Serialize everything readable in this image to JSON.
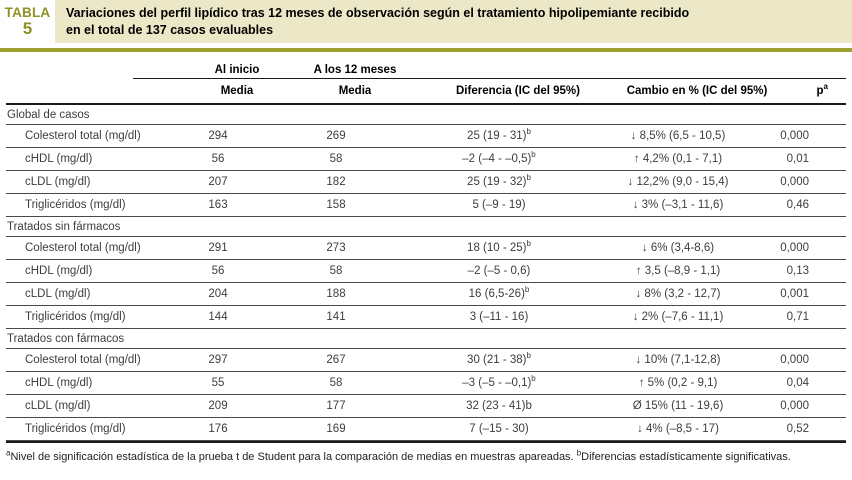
{
  "table_label": {
    "word": "TABLA",
    "number": "5"
  },
  "title": {
    "line1": "Variaciones del perfil lipídico tras 12 meses de observación según el tratamiento hipolipemiante recibido",
    "line2": "en el total de 137 casos evaluables"
  },
  "header": {
    "group_col1": "Al inicio",
    "group_col2": "A los 12 meses",
    "media1": "Media",
    "media2": "Media",
    "diferencia": "Diferencia (IC del 95%)",
    "cambio": "Cambio en % (IC del 95%)",
    "p_base": "p",
    "p_sup": "a"
  },
  "sections": [
    {
      "name": "Global de casos",
      "rows": [
        {
          "label": "Colesterol total (mg/dl)",
          "inicio": "294",
          "meses12": "269",
          "dif": "25 (19 - 31)",
          "dif_sup": "b",
          "cambio": "↓ 8,5% (6,5 - 10,5)",
          "p": "0,000"
        },
        {
          "label": "cHDL (mg/dl)",
          "inicio": "56",
          "meses12": "58",
          "dif": "–2 (–4 - –0,5)",
          "dif_sup": "b",
          "cambio": "↑ 4,2% (0,1 - 7,1)",
          "p": "0,01"
        },
        {
          "label": "cLDL (mg/dl)",
          "inicio": "207",
          "meses12": "182",
          "dif": "25 (19 - 32)",
          "dif_sup": "b",
          "cambio": "↓ 12,2% (9,0 - 15,4)",
          "p": "0,000"
        },
        {
          "label": "Triglicéridos (mg/dl)",
          "inicio": "163",
          "meses12": "158",
          "dif": "5 (–9 - 19)",
          "dif_sup": "",
          "cambio": "↓ 3% (–3,1 - 11,6)",
          "p": "0,46"
        }
      ]
    },
    {
      "name": "Tratados sin fármacos",
      "rows": [
        {
          "label": "Colesterol total (mg/dl)",
          "inicio": "291",
          "meses12": "273",
          "dif": "18 (10 - 25)",
          "dif_sup": "b",
          "cambio": "↓ 6% (3,4-8,6)",
          "p": "0,000"
        },
        {
          "label": "cHDL (mg/dl)",
          "inicio": "56",
          "meses12": "58",
          "dif": "–2 (–5 - 0,6)",
          "dif_sup": "",
          "cambio": "↑ 3,5 (–8,9 - 1,1)",
          "p": "0,13"
        },
        {
          "label": "cLDL (mg/dl)",
          "inicio": "204",
          "meses12": "188",
          "dif": "16 (6,5-26)",
          "dif_sup": "b",
          "cambio": "↓ 8% (3,2 - 12,7)",
          "p": "0,001"
        },
        {
          "label": "Triglicéridos (mg/dl)",
          "inicio": "144",
          "meses12": "141",
          "dif": "3 (–11 - 16)",
          "dif_sup": "",
          "cambio": "↓ 2% (–7,6 - 11,1)",
          "p": "0,71"
        }
      ]
    },
    {
      "name": "Tratados con fármacos",
      "rows": [
        {
          "label": "Colesterol total (mg/dl)",
          "inicio": "297",
          "meses12": "267",
          "dif": "30 (21 - 38)",
          "dif_sup": "b",
          "cambio": "↓ 10% (7,1-12,8)",
          "p": "0,000"
        },
        {
          "label": "cHDL (mg/dl)",
          "inicio": "55",
          "meses12": "58",
          "dif": "–3 (–5 - –0,1)",
          "dif_sup": "b",
          "cambio": "↑ 5% (0,2 - 9,1)",
          "p": "0,04"
        },
        {
          "label": "cLDL (mg/dl)",
          "inicio": "209",
          "meses12": "177",
          "dif": "32 (23 - 41)b",
          "dif_sup": "",
          "cambio": "Ø 15% (11 - 19,6)",
          "p": "0,000"
        },
        {
          "label": "Triglicéridos (mg/dl)",
          "inicio": "176",
          "meses12": "169",
          "dif": "7 (–15 - 30)",
          "dif_sup": "",
          "cambio": "↓ 4% (–8,5 - 17)",
          "p": "0,52"
        }
      ]
    }
  ],
  "footnote": {
    "sup1": "a",
    "text1": "Nivel de significación estadística de la prueba t de Student para la comparación de medias en muestras apareadas. ",
    "sup2": "b",
    "text2": "Diferencias estadísticamente significativas."
  },
  "colors": {
    "olive": "#8e9125",
    "olive_bar": "#9fa032",
    "cream": "#ece7c6"
  }
}
